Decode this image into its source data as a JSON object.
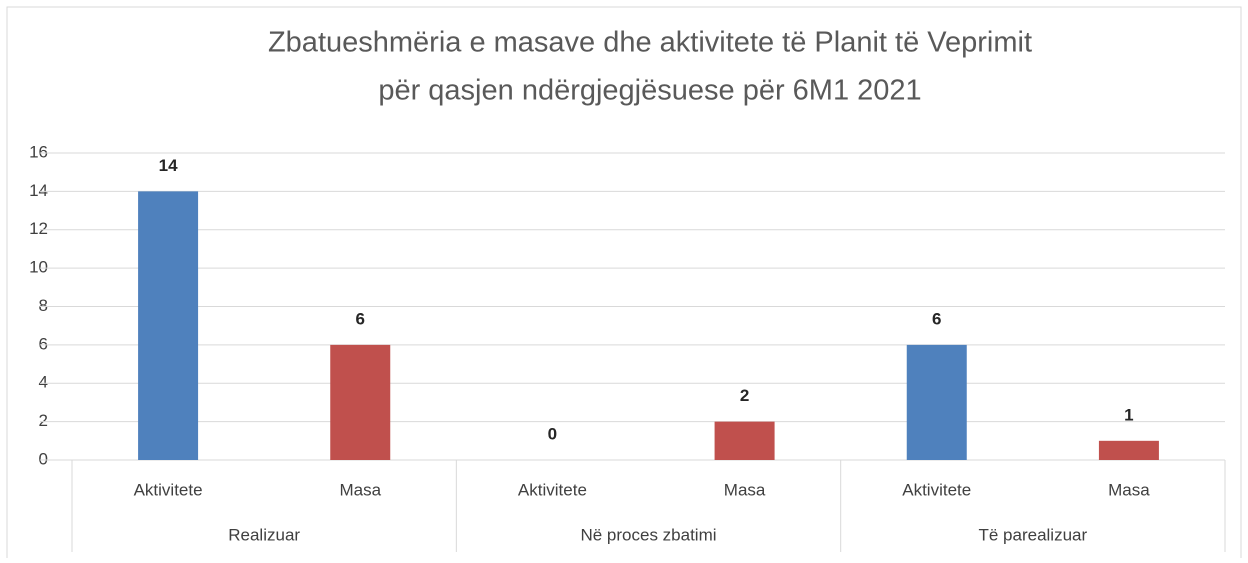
{
  "chart_data": {
    "type": "bar",
    "title": [
      "Zbatueshmëria e masave dhe aktivitete të Planit të Veprimit",
      "për qasjen ndërgjegjësuese për 6M1 2021"
    ],
    "categories": [
      "Aktivitete",
      "Masa",
      "Aktivitete",
      "Masa",
      "Aktivitete",
      "Masa"
    ],
    "groups": [
      "Realizuar",
      "Në proces zbatimi",
      "Të parealizuar"
    ],
    "values": [
      14,
      6,
      0,
      2,
      6,
      1
    ],
    "colors": [
      "#4f81bd",
      "#c0504d",
      "#4f81bd",
      "#c0504d",
      "#4f81bd",
      "#c0504d"
    ],
    "ylim": [
      0,
      16
    ],
    "yticks": [
      0,
      2,
      4,
      6,
      8,
      10,
      12,
      14,
      16
    ],
    "grid": true
  }
}
